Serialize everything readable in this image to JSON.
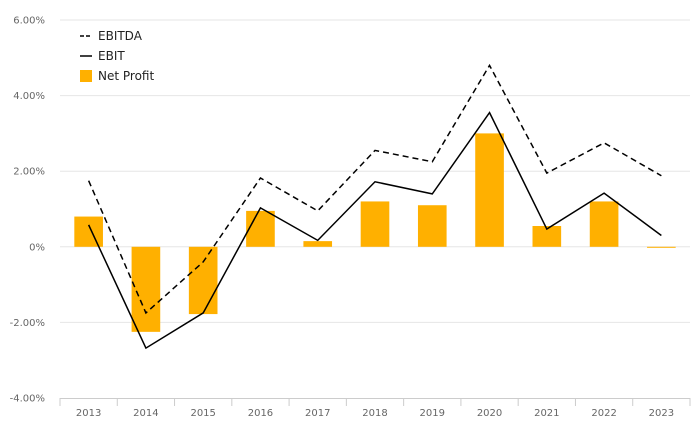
{
  "chart_data": {
    "type": "bar",
    "categories": [
      "2013",
      "2014",
      "2015",
      "2016",
      "2017",
      "2018",
      "2019",
      "2020",
      "2021",
      "2022",
      "2023"
    ],
    "series": [
      {
        "name": "EBITDA",
        "kind": "line",
        "style": "dashed",
        "color": "#000000",
        "values": [
          1.75,
          -1.75,
          -0.4,
          1.82,
          0.95,
          2.55,
          2.25,
          4.8,
          1.95,
          2.75,
          1.88
        ]
      },
      {
        "name": "EBIT",
        "kind": "line",
        "style": "solid",
        "color": "#000000",
        "values": [
          0.58,
          -2.68,
          -1.75,
          1.03,
          0.17,
          1.72,
          1.4,
          3.55,
          0.47,
          1.42,
          0.3
        ]
      },
      {
        "name": "Net Profit",
        "kind": "bar",
        "color": "#FFB000",
        "values": [
          0.8,
          -2.25,
          -1.78,
          0.95,
          0.15,
          1.2,
          1.1,
          3.0,
          0.55,
          1.2,
          -0.02
        ]
      }
    ],
    "ylim": [
      -4,
      6
    ],
    "yticks": [
      {
        "value": -4,
        "label": "-4.00%"
      },
      {
        "value": -2,
        "label": "-2.00%"
      },
      {
        "value": 0,
        "label": "0%"
      },
      {
        "value": 2,
        "label": "2.00%"
      },
      {
        "value": 4,
        "label": "4.00%"
      },
      {
        "value": 6,
        "label": "6.00%"
      }
    ],
    "grid": true,
    "legend": "top-left"
  }
}
